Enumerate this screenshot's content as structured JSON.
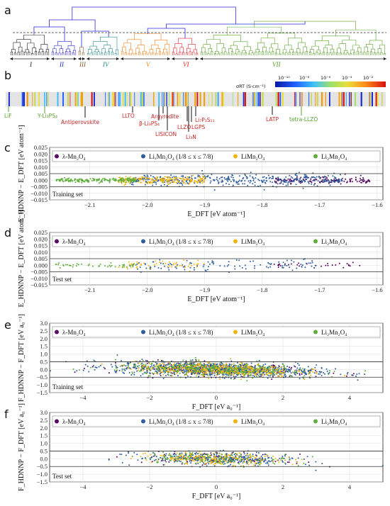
{
  "panel_labels": [
    "a",
    "b",
    "c",
    "d",
    "e",
    "f"
  ],
  "dendrogram": {
    "clusters": [
      {
        "label": "I",
        "color": "#222222"
      },
      {
        "label": "II",
        "color": "#2b2bd6"
      },
      {
        "label": "III",
        "color": "#8b5a2b"
      },
      {
        "label": "IV",
        "color": "#2a8a8a"
      },
      {
        "label": "V",
        "color": "#f07f1a"
      },
      {
        "label": "VI",
        "color": "#e8262a"
      },
      {
        "label": "VII",
        "color": "#5aa02c"
      }
    ]
  },
  "conductivity": {
    "colorbar_label": "σRT (S·cm⁻¹)",
    "colorbar_ticks": [
      "10⁻¹⁰",
      "10⁻⁸",
      "10⁻⁶",
      "10⁻⁴",
      "10⁻²"
    ],
    "materials": [
      {
        "name": "LiF",
        "color": "#5aa02c",
        "arrow": "up"
      },
      {
        "name": "Y-Li₃PS₄",
        "color": "#5aa02c",
        "arrow": "up"
      },
      {
        "name": "Antiperovskite",
        "color": "#c62828",
        "arrow": "up"
      },
      {
        "name": "LLTO",
        "color": "#c62828",
        "arrow": "up"
      },
      {
        "name": "Argyrodite",
        "color": "#c62828",
        "arrow": "up"
      },
      {
        "name": "β-Li₃PS₄",
        "color": "#c62828",
        "arrow": "up"
      },
      {
        "name": "LISICON",
        "color": "#c62828",
        "arrow": "up"
      },
      {
        "name": "LLZO",
        "color": "#c62828",
        "arrow": "up"
      },
      {
        "name": "LGPS",
        "color": "#c62828",
        "arrow": "up"
      },
      {
        "name": "Li₇P₃S₁₁",
        "color": "#c62828",
        "arrow": "up"
      },
      {
        "name": "Li₃N",
        "color": "#c62828",
        "arrow": "up"
      },
      {
        "name": "LATP",
        "color": "#c62828",
        "arrow": "up"
      },
      {
        "name": "tetra-LLZO",
        "color": "#5aa02c",
        "arrow": "up"
      }
    ]
  },
  "legend_series": [
    {
      "name": "λ-Mn₂O₄",
      "color": "#5b0a63"
    },
    {
      "name": "LiₓMn₂O₄ (1/8 ≤ x ≤ 7/8)",
      "color": "#2e5e9e"
    },
    {
      "name": "LiMn₂O₄",
      "color": "#f2b50f"
    },
    {
      "name": "Li₂Mn₂O₄",
      "color": "#5fad3a"
    }
  ],
  "chart_data": [
    {
      "panel": "c",
      "type": "scatter",
      "set_label": "Training set",
      "xlabel": "E_DFT [eV atom⁻¹]",
      "ylabel": "E_HDNNP − E_DFT [eV atom⁻¹]",
      "xlim": [
        -2.17,
        -1.59
      ],
      "ylim": [
        -0.015,
        0.025
      ],
      "xticks": [
        "−2.1",
        "−2.0",
        "−1.9",
        "−1.8",
        "−1.7",
        "−1.6"
      ],
      "xtick_values": [
        -2.1,
        -2.0,
        -1.9,
        -1.8,
        -1.7,
        -1.6
      ],
      "yticks": [
        "0.025",
        "0.020",
        "0.015",
        "0.010",
        "0.005",
        "0.000",
        "−0.005",
        "−0.010",
        "−0.015"
      ],
      "ytick_values": [
        0.025,
        0.02,
        0.015,
        0.01,
        0.005,
        0.0,
        -0.005,
        -0.01,
        -0.015
      ],
      "hlines": [
        0.005,
        -0.005
      ],
      "series": [
        {
          "name": "λ-Mn₂O₄",
          "x_range": [
            -1.78,
            -1.61
          ],
          "y_mean": 0.0,
          "y_sd": 0.0012,
          "n": 140
        },
        {
          "name": "LiₓMn₂O₄ (1/8 ≤ x ≤ 7/8)",
          "x_range": [
            -2.03,
            -1.66
          ],
          "y_mean": 0.0,
          "y_sd": 0.0022,
          "n": 420
        },
        {
          "name": "LiMn₂O₄",
          "x_range": [
            -2.05,
            -1.9
          ],
          "y_mean": 0.0,
          "y_sd": 0.0015,
          "n": 200
        },
        {
          "name": "Li₂Mn₂O₄",
          "x_range": [
            -2.16,
            -2.02
          ],
          "y_mean": 0.0,
          "y_sd": 0.0008,
          "n": 180
        }
      ]
    },
    {
      "panel": "d",
      "type": "scatter",
      "set_label": "Test set",
      "xlabel": "E_DFT [eV atom⁻¹]",
      "ylabel": "E_HDNNP − E_DFT [eV atom⁻¹]",
      "xlim": [
        -2.17,
        -1.59
      ],
      "ylim": [
        -0.015,
        0.025
      ],
      "xticks": [
        "−2.1",
        "−2.0",
        "−1.9",
        "−1.8",
        "−1.7",
        "−1.6"
      ],
      "xtick_values": [
        -2.1,
        -2.0,
        -1.9,
        -1.8,
        -1.7,
        -1.6
      ],
      "yticks": [
        "0.025",
        "0.020",
        "0.015",
        "0.010",
        "0.005",
        "0.000",
        "−0.005",
        "−0.010",
        "−0.015"
      ],
      "ytick_values": [
        0.025,
        0.02,
        0.015,
        0.01,
        0.005,
        0.0,
        -0.005,
        -0.01,
        -0.015
      ],
      "hlines": [
        0.005,
        -0.005
      ],
      "series": [
        {
          "name": "λ-Mn₂O₄",
          "x_range": [
            -1.78,
            -1.63
          ],
          "y_mean": 0.0,
          "y_sd": 0.0012,
          "n": 30
        },
        {
          "name": "LiₓMn₂O₄ (1/8 ≤ x ≤ 7/8)",
          "x_range": [
            -2.03,
            -1.7
          ],
          "y_mean": 0.0,
          "y_sd": 0.0022,
          "n": 110
        },
        {
          "name": "LiMn₂O₄",
          "x_range": [
            -2.05,
            -1.9
          ],
          "y_mean": 0.0,
          "y_sd": 0.0015,
          "n": 50
        },
        {
          "name": "Li₂Mn₂O₄",
          "x_range": [
            -2.16,
            -2.02
          ],
          "y_mean": 0.0,
          "y_sd": 0.001,
          "n": 45
        }
      ]
    },
    {
      "panel": "e",
      "type": "scatter",
      "set_label": "Training set",
      "xlabel": "F_DFT [eV a₀⁻¹]",
      "ylabel": "F_HDNNP − F_DFT [eV a₀⁻¹]",
      "xlim": [
        -5.0,
        5.0
      ],
      "ylim": [
        -1.5,
        3.0
      ],
      "xticks": [
        "−4",
        "−2",
        "0",
        "2",
        "4"
      ],
      "xtick_values": [
        -4,
        -2,
        0,
        2,
        4
      ],
      "yticks": [
        "3.0",
        "2.5",
        "2.0",
        "1.5",
        "1.0",
        "0.5",
        "0.0",
        "−0.5",
        "−1.0",
        "−1.5"
      ],
      "ytick_values": [
        3.0,
        2.5,
        2.0,
        1.5,
        1.0,
        0.5,
        0.0,
        -0.5,
        -1.0,
        -1.5
      ],
      "hlines": [
        0.5,
        -0.5
      ],
      "series": [
        {
          "name": "λ-Mn₂O₄",
          "x_range": [
            -4.5,
            4.5
          ],
          "y_mean": 0.0,
          "y_sd": 0.22,
          "n": 250
        },
        {
          "name": "LiₓMn₂O₄ (1/8 ≤ x ≤ 7/8)",
          "x_range": [
            -4.5,
            4.5
          ],
          "y_mean": 0.0,
          "y_sd": 0.22,
          "n": 900
        },
        {
          "name": "LiMn₂O₄",
          "x_range": [
            -3.5,
            3.5
          ],
          "y_mean": 0.0,
          "y_sd": 0.2,
          "n": 500
        },
        {
          "name": "Li₂Mn₂O₄",
          "x_range": [
            -4.5,
            4.5
          ],
          "y_mean": 0.0,
          "y_sd": 0.22,
          "n": 350
        }
      ]
    },
    {
      "panel": "f",
      "type": "scatter",
      "set_label": "Test set",
      "xlabel": "F_DFT [eV a₀⁻¹]",
      "ylabel": "F_HDNNP − F_DFT [eV a₀⁻¹]",
      "xlim": [
        -5.0,
        5.0
      ],
      "ylim": [
        -1.5,
        3.0
      ],
      "xticks": [
        "−4",
        "−2",
        "0",
        "2",
        "4"
      ],
      "xtick_values": [
        -4,
        -2,
        0,
        2,
        4
      ],
      "yticks": [
        "3.0",
        "2.5",
        "2.0",
        "1.5",
        "1.0",
        "0.5",
        "0.0",
        "−0.5",
        "−1.0",
        "−1.5"
      ],
      "ytick_values": [
        3.0,
        2.5,
        2.0,
        1.5,
        1.0,
        0.5,
        0.0,
        -0.5,
        -1.0,
        -1.5
      ],
      "hlines": [
        0.5,
        -0.5
      ],
      "series": [
        {
          "name": "λ-Mn₂O₄",
          "x_range": [
            -3.2,
            3.2
          ],
          "y_mean": 0.0,
          "y_sd": 0.2,
          "n": 80
        },
        {
          "name": "LiₓMn₂O₄ (1/8 ≤ x ≤ 7/8)",
          "x_range": [
            -3.5,
            3.5
          ],
          "y_mean": 0.0,
          "y_sd": 0.2,
          "n": 380
        },
        {
          "name": "LiMn₂O₄",
          "x_range": [
            -3.0,
            3.0
          ],
          "y_mean": 0.0,
          "y_sd": 0.18,
          "n": 220
        },
        {
          "name": "Li₂Mn₂O₄",
          "x_range": [
            -3.5,
            3.5
          ],
          "y_mean": 0.0,
          "y_sd": 0.2,
          "n": 130
        }
      ]
    }
  ]
}
